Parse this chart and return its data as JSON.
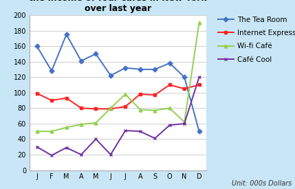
{
  "months": [
    "J",
    "F",
    "M",
    "A",
    "M",
    "J",
    "J",
    "A",
    "S",
    "O",
    "N",
    "D"
  ],
  "tea_room": [
    160,
    128,
    175,
    141,
    150,
    122,
    132,
    130,
    130,
    138,
    120,
    50
  ],
  "internet_express": [
    99,
    90,
    93,
    80,
    79,
    79,
    82,
    98,
    97,
    110,
    105,
    110
  ],
  "wifi_cafe": [
    50,
    50,
    55,
    59,
    61,
    80,
    98,
    78,
    77,
    80,
    62,
    190
  ],
  "cafe_cool": [
    30,
    19,
    29,
    20,
    40,
    20,
    51,
    50,
    41,
    58,
    60,
    120
  ],
  "tea_room_color": "#4472C4",
  "internet_express_color": "#FF2020",
  "wifi_cafe_color": "#92D050",
  "cafe_cool_color": "#7030A0",
  "ylim": [
    0,
    200
  ],
  "yticks": [
    0,
    20,
    40,
    60,
    80,
    100,
    120,
    140,
    160,
    180,
    200
  ],
  "unit_text": "Unit: 000s Dollars",
  "legend_labels": [
    "The Tea Room",
    "Internet Express",
    "Wi-fi Café",
    "Café Cool"
  ],
  "bg_color": "#C8E6F5",
  "plot_bg": "#FFFFFF"
}
